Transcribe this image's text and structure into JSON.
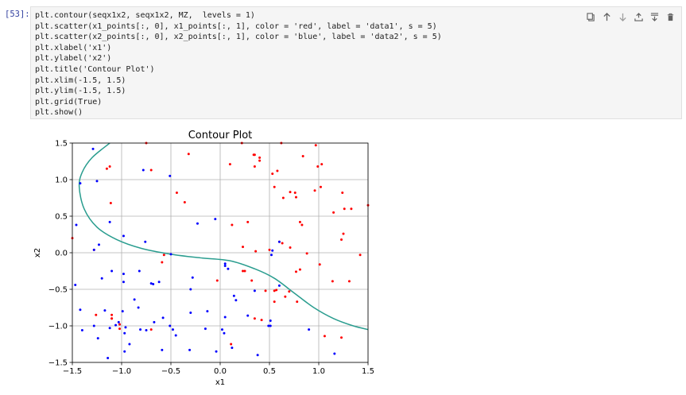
{
  "cell": {
    "prompt": "[53]:",
    "code_lines": [
      "plt.contour(seqx1x2, seqx1x2, MZ,  levels = 1)",
      "plt.scatter(x1_points[:, 0], x1_points[:, 1], color = 'red', label = 'data1', s = 5)",
      "plt.scatter(x2_points[:, 0], x2_points[:, 1], color = 'blue', label = 'data2', s = 5)",
      "plt.xlabel('x1')",
      "plt.ylabel('x2')",
      "plt.title('Contour Plot')",
      "plt.xlim(-1.5, 1.5)",
      "plt.ylim(-1.5, 1.5)",
      "plt.grid(True)",
      "plt.show()"
    ],
    "toolbar": [
      "copy-icon",
      "move-up-icon",
      "move-down-icon",
      "insert-above-icon",
      "insert-below-icon",
      "delete-icon"
    ]
  },
  "colors": {
    "data1": "#ff0000",
    "data2": "#0000ff",
    "contour": "#2a9d8f",
    "prompt": "#303f9f"
  },
  "chart_data": {
    "type": "scatter",
    "title": "Contour Plot",
    "xlabel": "x1",
    "ylabel": "x2",
    "xlim": [
      -1.5,
      1.5
    ],
    "ylim": [
      -1.5,
      1.5
    ],
    "grid": true,
    "xticks": [
      "−1.5",
      "−1.0",
      "−0.5",
      "0.0",
      "0.5",
      "1.0",
      "1.5"
    ],
    "yticks": [
      "−1.5",
      "−1.0",
      "−0.5",
      "0.0",
      "0.5",
      "1.0",
      "1.5"
    ],
    "xtick_values": [
      -1.5,
      -1.0,
      -0.5,
      0.0,
      0.5,
      1.0,
      1.5
    ],
    "ytick_values": [
      -1.5,
      -1.0,
      -0.5,
      0.0,
      0.5,
      1.0,
      1.5
    ],
    "contour": [
      [
        -1.12,
        1.5
      ],
      [
        -1.3,
        1.3
      ],
      [
        -1.4,
        1.1
      ],
      [
        -1.43,
        0.9
      ],
      [
        -1.38,
        0.6
      ],
      [
        -1.25,
        0.35
      ],
      [
        -1.05,
        0.18
      ],
      [
        -0.8,
        0.06
      ],
      [
        -0.5,
        -0.02
      ],
      [
        -0.2,
        -0.07
      ],
      [
        0.1,
        -0.11
      ],
      [
        0.35,
        -0.22
      ],
      [
        0.55,
        -0.35
      ],
      [
        0.75,
        -0.55
      ],
      [
        0.95,
        -0.75
      ],
      [
        1.15,
        -0.9
      ],
      [
        1.35,
        -1.0
      ],
      [
        1.5,
        -1.05
      ]
    ],
    "series": [
      {
        "name": "data1",
        "color": "#ff0000",
        "points": [
          [
            -0.75,
            1.5
          ],
          [
            -0.7,
            1.13
          ],
          [
            -0.32,
            1.35
          ],
          [
            0.22,
            1.5
          ],
          [
            0.34,
            1.34
          ],
          [
            0.35,
            1.34
          ],
          [
            0.4,
            1.3
          ],
          [
            0.62,
            1.5
          ],
          [
            0.97,
            1.47
          ],
          [
            0.1,
            1.21
          ],
          [
            0.35,
            1.18
          ],
          [
            0.4,
            1.26
          ],
          [
            0.53,
            1.08
          ],
          [
            0.58,
            1.12
          ],
          [
            0.84,
            1.32
          ],
          [
            0.99,
            1.18
          ],
          [
            1.03,
            1.21
          ],
          [
            -1.15,
            1.15
          ],
          [
            -1.12,
            1.18
          ],
          [
            -1.5,
            0.2
          ],
          [
            -0.44,
            0.82
          ],
          [
            -0.36,
            0.69
          ],
          [
            -1.11,
            0.68
          ],
          [
            0.64,
            0.75
          ],
          [
            0.55,
            0.9
          ],
          [
            0.71,
            0.83
          ],
          [
            0.77,
            0.76
          ],
          [
            0.76,
            0.82
          ],
          [
            0.96,
            0.85
          ],
          [
            1.02,
            0.9
          ],
          [
            1.15,
            0.55
          ],
          [
            1.24,
            0.82
          ],
          [
            1.26,
            0.6
          ],
          [
            1.33,
            0.6
          ],
          [
            1.5,
            0.65
          ],
          [
            1.25,
            0.26
          ],
          [
            1.23,
            0.18
          ],
          [
            0.28,
            0.42
          ],
          [
            0.12,
            0.38
          ],
          [
            0.81,
            0.42
          ],
          [
            0.83,
            0.38
          ],
          [
            0.6,
            0.15
          ],
          [
            0.63,
            0.13
          ],
          [
            0.23,
            0.08
          ],
          [
            0.36,
            0.02
          ],
          [
            0.5,
            0.04
          ],
          [
            0.71,
            0.07
          ],
          [
            0.88,
            -0.01
          ],
          [
            1.01,
            -0.16
          ],
          [
            1.14,
            -0.39
          ],
          [
            1.31,
            -0.39
          ],
          [
            1.42,
            -0.03
          ],
          [
            -1.28,
            0.04
          ],
          [
            -0.57,
            -0.03
          ],
          [
            -0.59,
            -0.13
          ],
          [
            -0.03,
            -0.38
          ],
          [
            0.32,
            -0.38
          ],
          [
            0.25,
            -0.25
          ],
          [
            0.23,
            -0.25
          ],
          [
            0.46,
            -0.52
          ],
          [
            0.55,
            -0.52
          ],
          [
            0.57,
            -0.51
          ],
          [
            0.55,
            -0.67
          ],
          [
            0.66,
            -0.6
          ],
          [
            0.7,
            -0.53
          ],
          [
            0.77,
            -0.26
          ],
          [
            0.81,
            -0.23
          ],
          [
            0.78,
            -0.67
          ],
          [
            -1.26,
            -0.85
          ],
          [
            -1.1,
            -0.85
          ],
          [
            -1.1,
            -0.9
          ],
          [
            -1.1,
            -0.9
          ],
          [
            -1.02,
            -0.98
          ],
          [
            -1.02,
            -1.04
          ],
          [
            -0.7,
            -1.05
          ],
          [
            0.35,
            -0.9
          ],
          [
            0.42,
            -0.92
          ],
          [
            0.11,
            -1.25
          ],
          [
            1.06,
            -1.14
          ],
          [
            1.23,
            -1.16
          ]
        ]
      },
      {
        "name": "data2",
        "color": "#0000ff",
        "points": [
          [
            -1.29,
            1.42
          ],
          [
            -1.25,
            0.98
          ],
          [
            -1.42,
            0.95
          ],
          [
            -1.46,
            0.38
          ],
          [
            -1.12,
            0.42
          ],
          [
            -0.98,
            0.23
          ],
          [
            -0.78,
            1.13
          ],
          [
            -0.51,
            1.05
          ],
          [
            -0.76,
            0.15
          ],
          [
            -0.23,
            0.4
          ],
          [
            -0.05,
            0.46
          ],
          [
            -1.23,
            0.11
          ],
          [
            -1.28,
            0.04
          ],
          [
            -0.5,
            -0.02
          ],
          [
            -1.2,
            -0.35
          ],
          [
            -1.1,
            -0.25
          ],
          [
            -0.98,
            -0.29
          ],
          [
            -0.98,
            -0.4
          ],
          [
            -0.82,
            -0.25
          ],
          [
            -0.7,
            -0.42
          ],
          [
            -0.68,
            -0.43
          ],
          [
            -0.62,
            -0.4
          ],
          [
            -0.28,
            -0.34
          ],
          [
            -0.3,
            -0.5
          ],
          [
            0.05,
            -0.15
          ],
          [
            0.05,
            -0.18
          ],
          [
            0.08,
            -0.22
          ],
          [
            -1.47,
            -0.44
          ],
          [
            -1.42,
            -0.78
          ],
          [
            -1.4,
            -1.06
          ],
          [
            -1.28,
            -1.0
          ],
          [
            -1.24,
            -1.17
          ],
          [
            -1.17,
            -0.79
          ],
          [
            -1.12,
            -1.03
          ],
          [
            -1.06,
            -0.99
          ],
          [
            -1.03,
            -0.95
          ],
          [
            -0.99,
            -0.8
          ],
          [
            -0.97,
            -1.1
          ],
          [
            -0.96,
            -1.02
          ],
          [
            -0.92,
            -1.25
          ],
          [
            -0.87,
            -0.64
          ],
          [
            -0.83,
            -0.75
          ],
          [
            -0.81,
            -1.05
          ],
          [
            -0.75,
            -1.06
          ],
          [
            -0.67,
            -0.95
          ],
          [
            -0.58,
            -0.89
          ],
          [
            -0.48,
            -1.05
          ],
          [
            -0.45,
            -1.13
          ],
          [
            -0.3,
            -0.82
          ],
          [
            -0.15,
            -1.04
          ],
          [
            -0.13,
            -0.8
          ],
          [
            -0.04,
            -1.35
          ],
          [
            0.02,
            -1.05
          ],
          [
            0.04,
            -1.1
          ],
          [
            0.05,
            -0.88
          ],
          [
            0.12,
            -1.3
          ],
          [
            0.14,
            -0.59
          ],
          [
            0.16,
            -0.65
          ],
          [
            0.28,
            -0.86
          ],
          [
            0.35,
            -0.52
          ],
          [
            0.38,
            -1.4
          ],
          [
            0.49,
            -1.0
          ],
          [
            0.51,
            -0.93
          ],
          [
            0.51,
            -1.0
          ],
          [
            0.6,
            -0.45
          ],
          [
            0.53,
            0.03
          ],
          [
            0.52,
            -0.03
          ],
          [
            0.6,
            0.15
          ],
          [
            0.9,
            -1.05
          ],
          [
            1.16,
            -1.38
          ],
          [
            -1.14,
            -1.44
          ],
          [
            -0.97,
            -1.35
          ],
          [
            -0.51,
            -1.0
          ],
          [
            -0.59,
            -1.33
          ],
          [
            -0.31,
            -1.33
          ]
        ]
      }
    ]
  }
}
